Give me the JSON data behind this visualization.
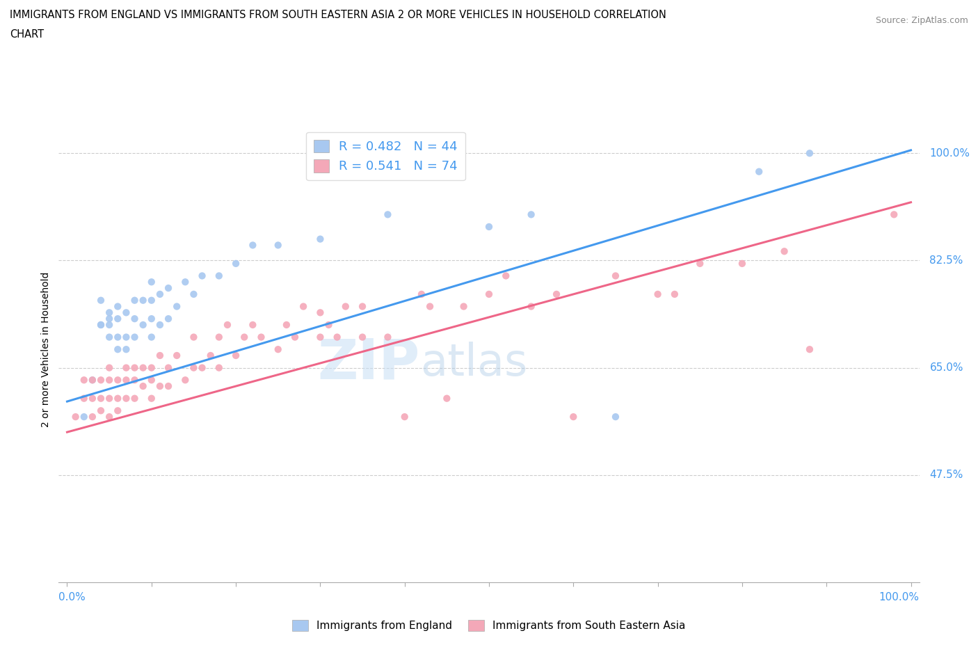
{
  "title_line1": "IMMIGRANTS FROM ENGLAND VS IMMIGRANTS FROM SOUTH EASTERN ASIA 2 OR MORE VEHICLES IN HOUSEHOLD CORRELATION",
  "title_line2": "CHART",
  "source_text": "Source: ZipAtlas.com",
  "ylabel": "2 or more Vehicles in Household",
  "x_label_bottom_left": "0.0%",
  "x_label_bottom_right": "100.0%",
  "y_ticks": [
    0.475,
    0.65,
    0.825,
    1.0
  ],
  "y_tick_labels": [
    "47.5%",
    "65.0%",
    "82.5%",
    "100.0%"
  ],
  "xlim": [
    -0.01,
    1.01
  ],
  "ylim": [
    0.3,
    1.06
  ],
  "england_color": "#a8c8f0",
  "sea_color": "#f4a8b8",
  "england_line_color": "#4499ee",
  "sea_line_color": "#ee6688",
  "england_R": 0.482,
  "england_N": 44,
  "sea_R": 0.541,
  "sea_N": 74,
  "watermark_zip": "ZIP",
  "watermark_atlas": "atlas",
  "grid_color": "#cccccc",
  "tick_label_color": "#4499ee",
  "england_label": "Immigrants from England",
  "sea_label": "Immigrants from South Eastern Asia",
  "england_scatter_x": [
    0.02,
    0.03,
    0.04,
    0.04,
    0.04,
    0.05,
    0.05,
    0.05,
    0.05,
    0.06,
    0.06,
    0.06,
    0.06,
    0.07,
    0.07,
    0.07,
    0.08,
    0.08,
    0.08,
    0.09,
    0.09,
    0.1,
    0.1,
    0.1,
    0.1,
    0.11,
    0.11,
    0.12,
    0.12,
    0.13,
    0.14,
    0.15,
    0.16,
    0.18,
    0.2,
    0.22,
    0.25,
    0.3,
    0.38,
    0.5,
    0.55,
    0.65,
    0.82,
    0.88
  ],
  "england_scatter_y": [
    0.57,
    0.63,
    0.72,
    0.72,
    0.76,
    0.7,
    0.72,
    0.73,
    0.74,
    0.68,
    0.7,
    0.73,
    0.75,
    0.68,
    0.7,
    0.74,
    0.7,
    0.73,
    0.76,
    0.72,
    0.76,
    0.7,
    0.73,
    0.76,
    0.79,
    0.72,
    0.77,
    0.73,
    0.78,
    0.75,
    0.79,
    0.77,
    0.8,
    0.8,
    0.82,
    0.85,
    0.85,
    0.86,
    0.9,
    0.88,
    0.9,
    0.57,
    0.97,
    1.0
  ],
  "sea_scatter_x": [
    0.01,
    0.02,
    0.02,
    0.03,
    0.03,
    0.03,
    0.04,
    0.04,
    0.04,
    0.05,
    0.05,
    0.05,
    0.05,
    0.06,
    0.06,
    0.06,
    0.07,
    0.07,
    0.07,
    0.08,
    0.08,
    0.08,
    0.09,
    0.09,
    0.1,
    0.1,
    0.1,
    0.11,
    0.11,
    0.12,
    0.12,
    0.13,
    0.14,
    0.15,
    0.15,
    0.16,
    0.17,
    0.18,
    0.18,
    0.19,
    0.2,
    0.21,
    0.22,
    0.23,
    0.25,
    0.26,
    0.27,
    0.28,
    0.3,
    0.3,
    0.31,
    0.32,
    0.33,
    0.35,
    0.35,
    0.38,
    0.4,
    0.42,
    0.43,
    0.45,
    0.47,
    0.5,
    0.52,
    0.55,
    0.58,
    0.6,
    0.65,
    0.7,
    0.72,
    0.75,
    0.8,
    0.85,
    0.88,
    0.98
  ],
  "sea_scatter_y": [
    0.57,
    0.6,
    0.63,
    0.57,
    0.6,
    0.63,
    0.58,
    0.6,
    0.63,
    0.57,
    0.6,
    0.63,
    0.65,
    0.58,
    0.6,
    0.63,
    0.6,
    0.63,
    0.65,
    0.6,
    0.63,
    0.65,
    0.62,
    0.65,
    0.6,
    0.63,
    0.65,
    0.62,
    0.67,
    0.62,
    0.65,
    0.67,
    0.63,
    0.65,
    0.7,
    0.65,
    0.67,
    0.65,
    0.7,
    0.72,
    0.67,
    0.7,
    0.72,
    0.7,
    0.68,
    0.72,
    0.7,
    0.75,
    0.7,
    0.74,
    0.72,
    0.7,
    0.75,
    0.7,
    0.75,
    0.7,
    0.57,
    0.77,
    0.75,
    0.6,
    0.75,
    0.77,
    0.8,
    0.75,
    0.77,
    0.57,
    0.8,
    0.77,
    0.77,
    0.82,
    0.82,
    0.84,
    0.68,
    0.9
  ]
}
